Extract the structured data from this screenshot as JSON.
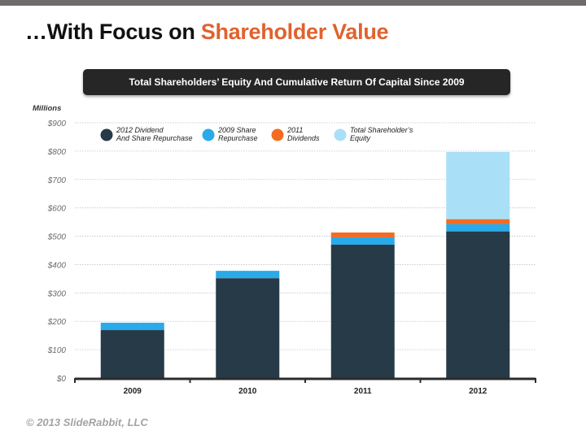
{
  "slide": {
    "title_prefix": "…With Focus on ",
    "title_accent": "Shareholder Value",
    "banner": "Total Shareholders’ Equity And Cumulative Return Of Capital Since 2009",
    "footer": "© 2013 SlideRabbit, LLC"
  },
  "colors": {
    "accent": "#e0622e",
    "dark": "#263a47",
    "blue": "#2aaae9",
    "orange": "#f36c21",
    "lightblue": "#aadff8"
  },
  "chart_data": {
    "type": "bar",
    "stacked": true,
    "title": "Total Shareholders’ Equity And Cumulative Return Of Capital Since 2009",
    "ylabel": "Millions",
    "xlabel": "",
    "categories": [
      "2009",
      "2010",
      "2011",
      "2012"
    ],
    "ylim": [
      0,
      900
    ],
    "yticks": [
      0,
      100,
      200,
      300,
      400,
      500,
      600,
      700,
      800,
      900
    ],
    "ytick_labels": [
      "$0",
      "$100",
      "$200",
      "$300",
      "$400",
      "$500",
      "$600",
      "$700",
      "$800",
      "$900"
    ],
    "grid": true,
    "legend_position": "top",
    "series": [
      {
        "name": "2012 Dividend And Share Repurchase",
        "legend_lines": [
          "2012 Dividend",
          "And Share Repurchase"
        ],
        "color": "#263a47",
        "values": [
          169,
          352,
          470,
          517
        ]
      },
      {
        "name": "2009 Share Repurchase",
        "legend_lines": [
          "2009 Share",
          "Repurchase"
        ],
        "color": "#2aaae9",
        "values": [
          26,
          26,
          26,
          26
        ]
      },
      {
        "name": "2011 Dividends",
        "legend_lines": [
          "2011",
          "Dividends"
        ],
        "color": "#f36c21",
        "values": [
          0,
          0,
          17,
          17
        ]
      },
      {
        "name": "Total Shareholder’s Equity",
        "legend_lines": [
          "Total Shareholder’s",
          "Equity"
        ],
        "color": "#aadff8",
        "values": [
          0,
          0,
          0,
          237
        ]
      }
    ]
  }
}
